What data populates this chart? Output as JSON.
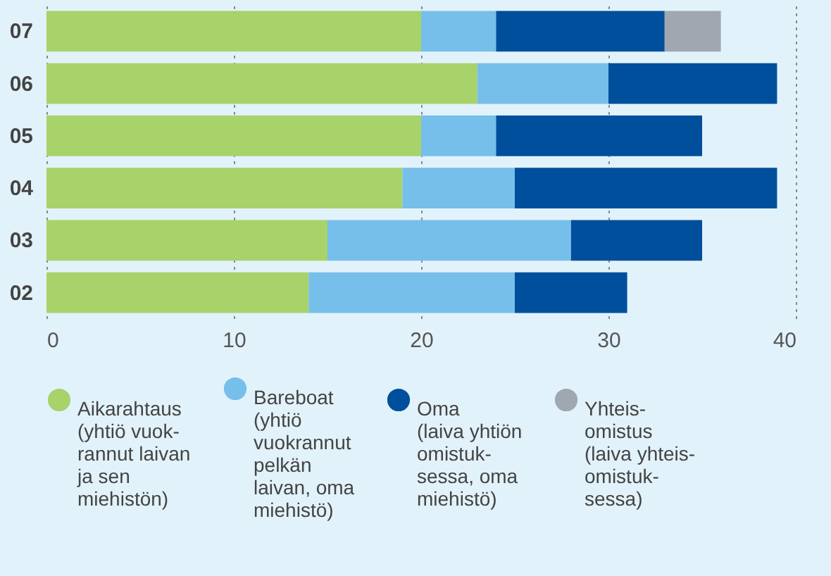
{
  "chart_data": {
    "type": "bar",
    "orientation": "horizontal",
    "stacked": true,
    "categories": [
      "07",
      "06",
      "05",
      "04",
      "03",
      "02"
    ],
    "series": [
      {
        "name": "Aikarahtaus\n(yhtiö vuok-\nrannut laivan\nja sen\nmiehistön)",
        "color": "#a8d26a",
        "values": [
          20,
          23,
          20,
          19,
          15,
          14
        ]
      },
      {
        "name": "Bareboat\n(yhtiö\nvuokrannut\npelkän\nlaivan, oma\nmiehistö)",
        "color": "#76bfea",
        "values": [
          4,
          7,
          4,
          6,
          13,
          11
        ]
      },
      {
        "name": "Oma\n(laiva yhtiön\nomistuk-\nsessa, oma\nmiehistö)",
        "color": "#004f9c",
        "values": [
          9,
          9,
          11,
          14,
          7,
          6
        ]
      },
      {
        "name": "Yhteis-\nomistus\n(laiva yhteis-\nomistuk-\nsessa)",
        "color": "#a0a7b1",
        "values": [
          3,
          null,
          null,
          null,
          null,
          null
        ]
      }
    ],
    "xlim": [
      0,
      40
    ],
    "xticks": [
      0,
      10,
      20,
      30,
      40
    ],
    "grid": "x",
    "legend": "bottom"
  }
}
